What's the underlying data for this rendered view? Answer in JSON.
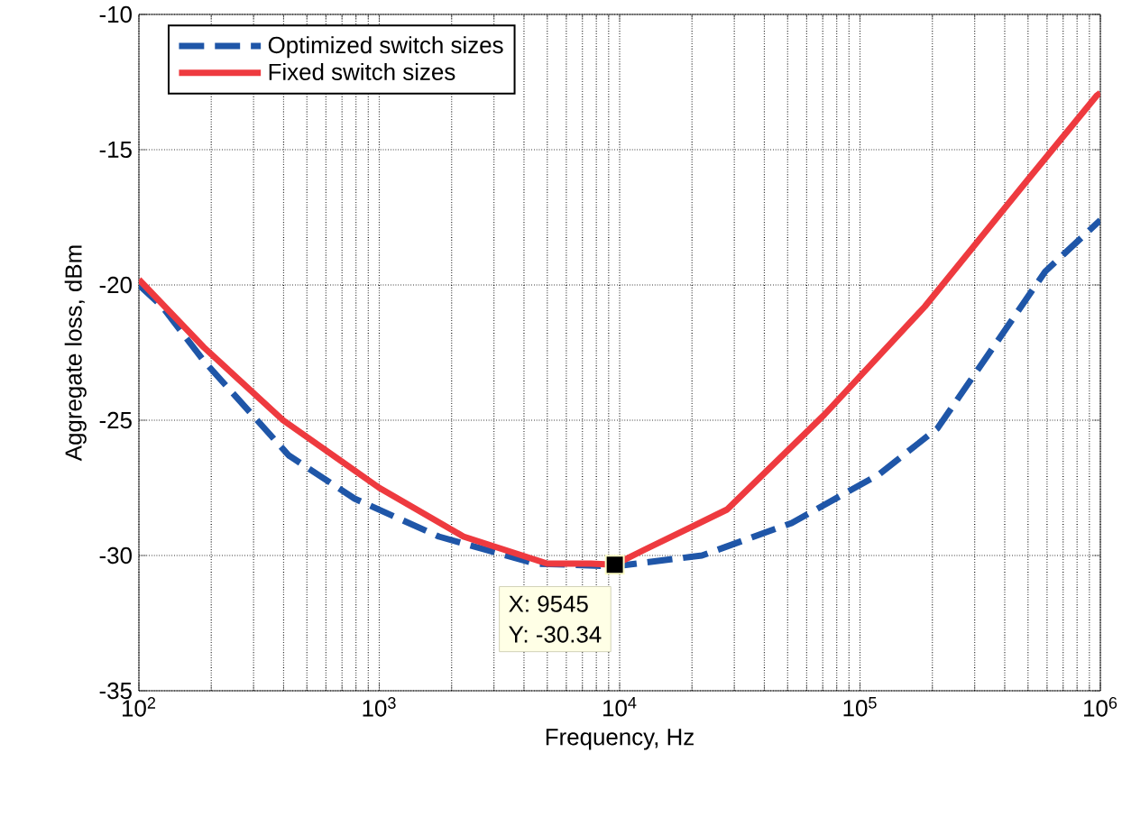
{
  "chart_data": {
    "type": "line",
    "xlabel": "Frequency, Hz",
    "ylabel": "Aggregate loss, dBm",
    "log": "x",
    "grid": true,
    "legend": "top left",
    "xlim": [
      100,
      1000000
    ],
    "ylim": [
      -35,
      -10
    ],
    "xticks": [
      {
        "value": 100,
        "label": "10$^{2}$"
      },
      {
        "value": 1000,
        "label": "10$^{3}$"
      },
      {
        "value": 10000,
        "label": "10$^{4}$"
      },
      {
        "value": 100000,
        "label": "10$^{5}$"
      },
      {
        "value": 1000000,
        "label": "10$^{6}$"
      }
    ],
    "yticks": [
      -35,
      -30,
      -25,
      -20,
      -15,
      -10
    ],
    "series": [
      {
        "name": "Optimized switch sizes",
        "color": "#1f56a8",
        "line_style": "dashed",
        "x": [
          100,
          125,
          186,
          420,
          790,
          1770,
          4450,
          9545,
          22000,
          52000,
          120000,
          210000,
          340000,
          590000,
          1000000
        ],
        "values": [
          -20.0,
          -20.8,
          -22.8,
          -26.3,
          -27.9,
          -29.3,
          -30.3,
          -30.4,
          -30.0,
          -28.8,
          -27.0,
          -25.3,
          -22.6,
          -19.5,
          -17.6
        ]
      },
      {
        "name": "Fixed switch sizes",
        "color": "#ee3a3f",
        "line_style": "solid",
        "x": [
          100,
          186,
          398,
          1000,
          2240,
          5000,
          7600,
          9545,
          12600,
          28000,
          71000,
          186000,
          500000,
          966000,
          1000000
        ],
        "values": [
          -19.8,
          -22.3,
          -25.0,
          -27.5,
          -29.3,
          -30.3,
          -30.3,
          -30.34,
          -29.8,
          -28.3,
          -24.8,
          -20.8,
          -16.1,
          -13.0,
          -12.9
        ]
      }
    ],
    "annotations": [
      {
        "text": "X: 9545",
        "x": 9545,
        "y": -30.34
      },
      {
        "text": "Y: -30.34",
        "x": 9545,
        "y": -30.34
      }
    ]
  }
}
